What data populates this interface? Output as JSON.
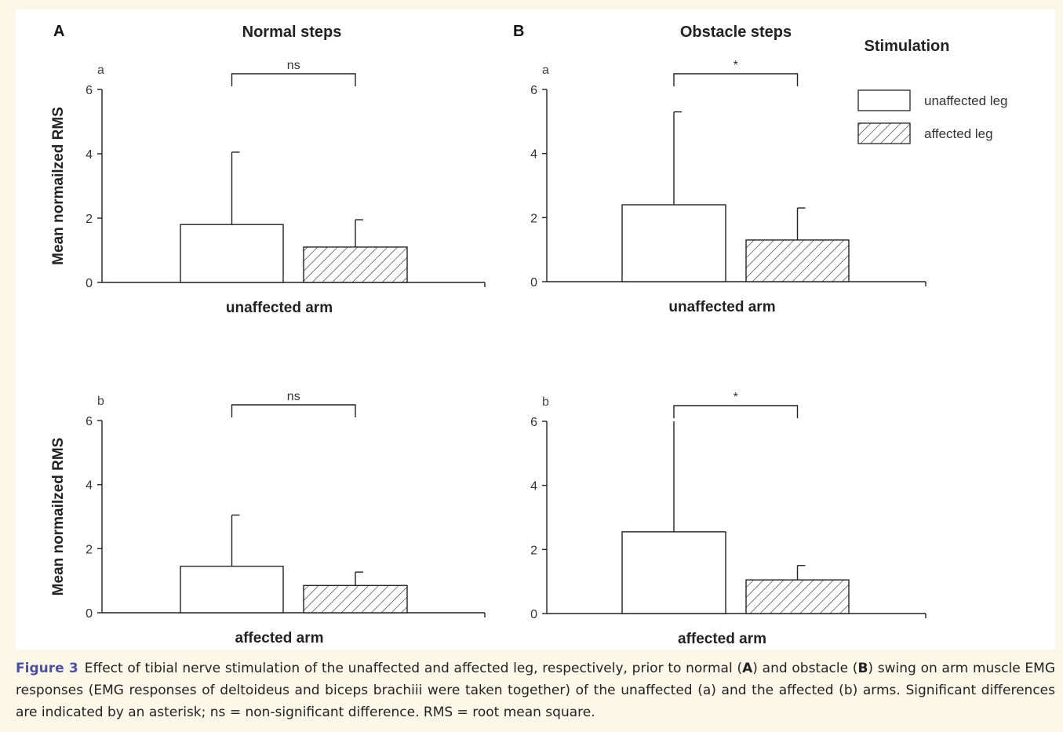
{
  "panels": {
    "A": {
      "letter": "A",
      "title": "Normal steps"
    },
    "B": {
      "letter": "B",
      "title": "Obstacle steps"
    }
  },
  "legend": {
    "title": "Stimulation",
    "items": [
      {
        "label": "unaffected leg",
        "fill": "white"
      },
      {
        "label": "affected leg",
        "fill": "hatched"
      }
    ]
  },
  "colors": {
    "stroke": "#222222",
    "panel_bg": "#ffffff",
    "page_bg": "#fbf8ea",
    "caption_accent": "#4a4fa3"
  },
  "chart_data": [
    {
      "type": "bar",
      "panel": "A",
      "sublabel": "a",
      "xlabel": "unaffected arm",
      "ylabel": "Mean normailzed RMS",
      "ylim": [
        0,
        6
      ],
      "yticks": [
        0,
        2,
        4,
        6
      ],
      "series": [
        {
          "name": "unaffected leg",
          "value": 1.8,
          "error": 2.25
        },
        {
          "name": "affected leg",
          "value": 1.1,
          "error": 0.85
        }
      ],
      "significance": "ns"
    },
    {
      "type": "bar",
      "panel": "B",
      "sublabel": "a",
      "xlabel": "unaffected arm",
      "ylabel": "",
      "ylim": [
        0,
        6
      ],
      "yticks": [
        0,
        2,
        4,
        6
      ],
      "series": [
        {
          "name": "unaffected leg",
          "value": 2.4,
          "error": 2.9
        },
        {
          "name": "affected leg",
          "value": 1.3,
          "error": 1.0
        }
      ],
      "significance": "*"
    },
    {
      "type": "bar",
      "panel": "A",
      "sublabel": "b",
      "xlabel": "affected arm",
      "ylabel": "Mean normailzed RMS",
      "ylim": [
        0,
        6
      ],
      "yticks": [
        0,
        2,
        4,
        6
      ],
      "series": [
        {
          "name": "unaffected leg",
          "value": 1.45,
          "error": 1.6
        },
        {
          "name": "affected leg",
          "value": 0.85,
          "error": 0.42
        }
      ],
      "significance": "ns"
    },
    {
      "type": "bar",
      "panel": "B",
      "sublabel": "b",
      "xlabel": "affected arm",
      "ylabel": "",
      "ylim": [
        0,
        6
      ],
      "yticks": [
        0,
        2,
        4,
        6
      ],
      "series": [
        {
          "name": "unaffected leg",
          "value": 2.55,
          "error": 3.5
        },
        {
          "name": "affected leg",
          "value": 1.05,
          "error": 0.45
        }
      ],
      "significance": "*"
    }
  ],
  "caption": {
    "label": "Figure 3",
    "t1": "Effect of tibial nerve stimulation of the unaffected and affected leg, respectively, prior to normal (",
    "bA": "A",
    "t2": ") and obstacle (",
    "bB": "B",
    "t3": ") swing on arm muscle EMG responses (EMG responses of deltoideus and biceps brachiii were taken together) of the unaffected (a) and the affected (b) arms. Significant differences are indicated by an asterisk; ns = non-significant difference. RMS = root mean square."
  }
}
